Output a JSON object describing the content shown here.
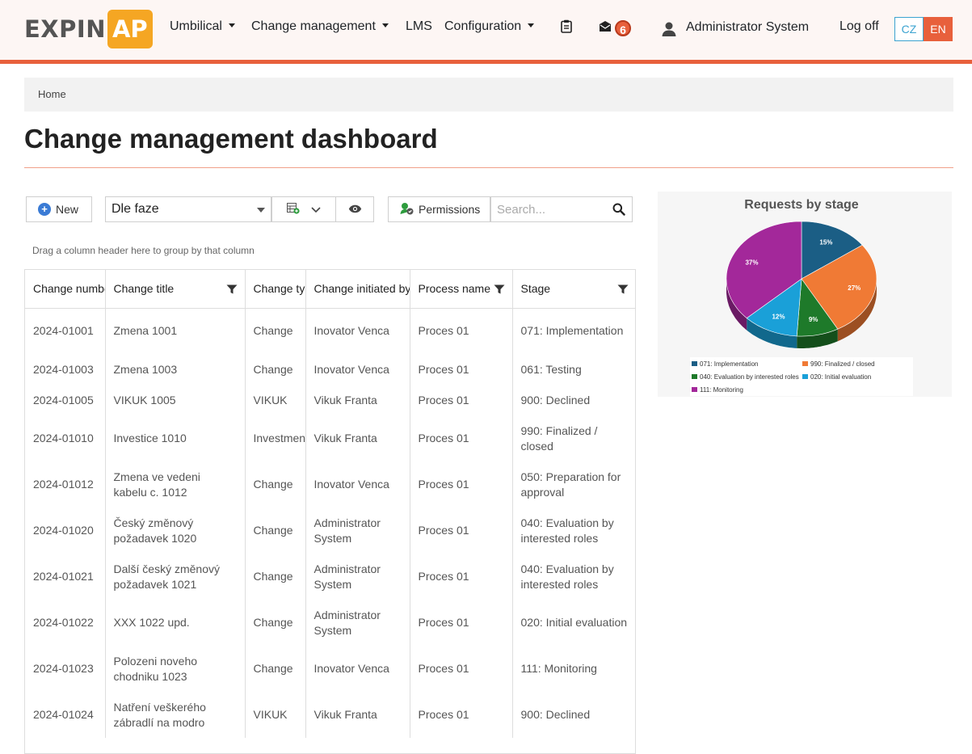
{
  "brand": {
    "text_part": "EXPIN",
    "badge_part": "AP"
  },
  "nav": {
    "items": [
      {
        "label": "Umbilical",
        "dropdown": true
      },
      {
        "label": "Change management",
        "dropdown": true
      },
      {
        "label": "LMS",
        "dropdown": false
      },
      {
        "label": "Configuration",
        "dropdown": true
      }
    ],
    "mail_count": "6",
    "user_name": "Administrator System",
    "logoff": "Log off",
    "languages": [
      "CZ",
      "EN"
    ],
    "active_language": "EN"
  },
  "breadcrumb": {
    "home": "Home"
  },
  "page": {
    "title": "Change management dashboard"
  },
  "toolbar": {
    "new_label": "New",
    "view_select": "Dle faze",
    "permissions_label": "Permissions",
    "search_placeholder": "Search..."
  },
  "grid": {
    "group_hint": "Drag a column header here to group by that column",
    "columns": [
      "Change number",
      "Change title",
      "Change type",
      "Change initiated by",
      "Process name",
      "Stage"
    ],
    "rows": [
      [
        "2024-01001",
        "Zmena 1001",
        "Change",
        "Inovator Venca",
        "Proces 01",
        "071: Implementation"
      ],
      [
        "2024-01003",
        "Zmena 1003",
        "Change",
        "Inovator Venca",
        "Proces 01",
        "061: Testing"
      ],
      [
        "2024-01005",
        "VIKUK 1005",
        "VIKUK",
        "Vikuk Franta",
        "Proces 01",
        "900: Declined"
      ],
      [
        "2024-01010",
        "Investice 1010",
        "Investment",
        "Vikuk Franta",
        "Proces 01",
        "990: Finalized / closed"
      ],
      [
        "2024-01012",
        "Zmena ve vedeni kabelu c. 1012",
        "Change",
        "Inovator Venca",
        "Proces 01",
        "050: Preparation for approval"
      ],
      [
        "2024-01020",
        "Český změnový požadavek 1020",
        "Change",
        "Administrator System",
        "Proces 01",
        "040: Evaluation by interested roles"
      ],
      [
        "2024-01021",
        "Další český změnový požadavek 1021",
        "Change",
        "Administrator System",
        "Proces 01",
        "040: Evaluation by interested roles"
      ],
      [
        "2024-01022",
        "XXX 1022 upd.",
        "Change",
        "Administrator System",
        "Proces 01",
        "020: Initial evaluation"
      ],
      [
        "2024-01023",
        "Polozeni noveho chodniku 1023",
        "Change",
        "Inovator Venca",
        "Proces 01",
        "111: Monitoring"
      ],
      [
        "2024-01024",
        "Natření veškerého zábradlí na modro",
        "VIKUK",
        "Vikuk Franta",
        "Proces 01",
        "900: Declined"
      ]
    ]
  },
  "chart_data": {
    "type": "pie",
    "title": "Requests by stage",
    "categories": [
      "071: Implementation",
      "990: Finalized / closed",
      "040: Evaluation by interested roles",
      "020: Initial evaluation",
      "111: Monitoring"
    ],
    "values": [
      15,
      27,
      9,
      12,
      37
    ],
    "labels": [
      "15%",
      "27%",
      "9%",
      "12%",
      "37%"
    ],
    "colors": [
      "#1b5e85",
      "#f07a35",
      "#1e7a2a",
      "#1aa0d8",
      "#a3289a"
    ],
    "legend_position": "bottom"
  },
  "colors": {
    "accent": "#e8603c",
    "brand_yellow": "#f5a623"
  }
}
